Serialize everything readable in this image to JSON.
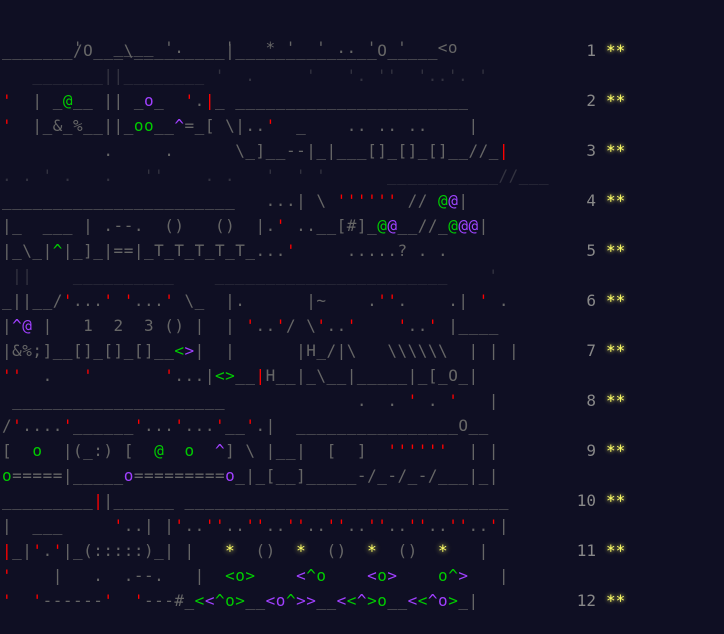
{
  "calendar": {
    "top_line": "   '   ____ '.    '   * '  ' .. '  '   <o",
    "days": [
      {
        "art": "_______/O___\\_________|______________O_____",
        "day": "1",
        "stars": "**"
      },
      {
        "art": "'  | _@__ || _o_  '.|_ _______________________",
        "day": "2",
        "stars": "**"
      },
      {
        "art": "'  |_&_%__||_oo__^=_[ \\|..'  _    .. .. ..    |",
        "day": "3",
        "stars": "**"
      },
      {
        "art": "_______________________   ...| \\ '''''' // @@|",
        "day": "4",
        "stars": "**"
      },
      {
        "art": "|_\\_|^|_]_|==|_T_T_T_T_T_...'     .....? . .",
        "day": "5",
        "stars": "**"
      },
      {
        "art": "_||__/'...' '...' \\_  |.      |~    .''.    .| ' .",
        "day": "6",
        "stars": "**"
      },
      {
        "art": "|&%;]__[]_[]_[]__<>|  |      |H_/|\\   \\\\\\\\\\\\  | | |",
        "day": "7",
        "stars": "**"
      },
      {
        "art": " _____________________             .  . ' . '   |",
        "day": "8",
        "stars": "**"
      },
      {
        "art": "[  o  |(_:) [  @  o  ^] \\ |__|  [  ]  ''''''  | |",
        "day": "9",
        "stars": "**"
      },
      {
        "art": "_________||______ ________________________________",
        "day": "10",
        "stars": "**"
      },
      {
        "art": "|_|'.'|_(:::::)_| |   *  ()  *  ()  *  ()  *   |",
        "day": "11",
        "stars": "**"
      },
      {
        "art": "'  '------'  '---#_<<^o>__<o^>>__<<^>o__<<^o>_|",
        "day": "12",
        "stars": "**"
      }
    ],
    "filler_rows": [
      "________/O___\\_________|______________O_____",
      "   _______||________ '  .     '   '. ''  '..'. '",
      "          .     .      \\_]__--|_|___[]_[]_[]__//_|",
      ". . ' .   .   ''    . .   '  ' '      ___________//___",
      "|_  ___ | .--.  ()   ()  |.' ..__[#]_@@__//_@@@|",
      " ||    __________    _______________________    '",
      "|^@ |   1  2  3 () |  | '..'/ \\'..'    '..' |____",
      "''  .   '       '...|<>__|H__|_\\__|_____|_[_O_|",
      "/'....'______'...'...'__'.|  ________________O__",
      "o=====|_____o=========o_|_[__]_____-/_-/_-/___|_|",
      "|  ___     '..| |'..''..''..''..''..''..''..''..'|",
      "'    |   .  .--.   |  <o>    <^o    <o>    o^>   |"
    ]
  }
}
